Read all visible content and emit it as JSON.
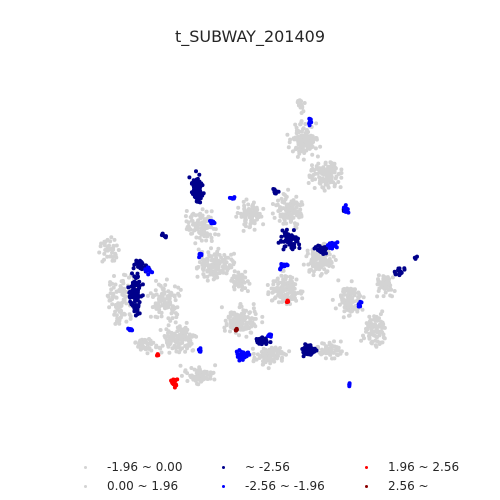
{
  "title": "t_SUBWAY_201409",
  "legend": {
    "items": [
      {
        "label": "-1.96 ~ 0.00",
        "color": "#d3d3d3"
      },
      {
        "label": "0.00 ~ 1.96",
        "color": "#d3d3d3"
      },
      {
        "label": "~ -2.56",
        "color": "#00008b"
      },
      {
        "label": "-2.56 ~ -1.96",
        "color": "#0000ff"
      },
      {
        "label": "1.96 ~ 2.56",
        "color": "#ff0000"
      },
      {
        "label": "2.56 ~",
        "color": "#8b0000"
      }
    ]
  },
  "colors": {
    "insignificant": "#d3d3d3",
    "cold_99": "#00008b",
    "cold_95": "#0000ff",
    "hot_95": "#ff0000",
    "hot_99": "#8b0000"
  }
}
